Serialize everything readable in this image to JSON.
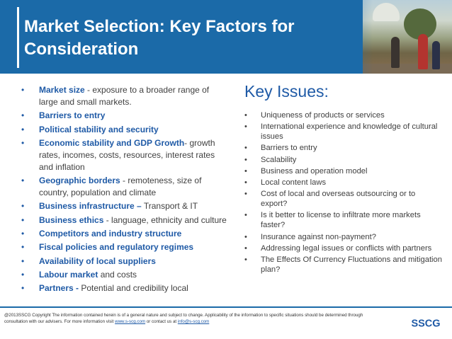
{
  "title": "Market Selection: Key Factors for Consideration",
  "left": {
    "items": [
      {
        "term": "Market size",
        "rest": " - exposure to a broader range of large and small markets."
      },
      {
        "term": "Barriers to entry",
        "rest": ""
      },
      {
        "term": "Political stability  and security",
        "rest": ""
      },
      {
        "term": "Economic stability  and GDP Growth",
        "rest": "- growth rates, incomes, costs, resources, interest rates and inflation"
      },
      {
        "term": "Geographic borders",
        "rest": " - remoteness, size of country, population and climate"
      },
      {
        "term": "Business infrastructure –",
        "rest": " Transport & IT"
      },
      {
        "term": "Business ethics",
        "rest": " - language, ethnicity and culture"
      },
      {
        "term": "Competitors and industry structure",
        "rest": ""
      },
      {
        "term": "Fiscal policies and regulatory regimes",
        "rest": ""
      },
      {
        "term": "Availability of local suppliers",
        "rest": ""
      },
      {
        "term": "Labour  market",
        "rest": " and costs"
      },
      {
        "term": "Partners -",
        "rest": " Potential  and credibility local"
      }
    ]
  },
  "right": {
    "heading": "Key Issues:",
    "items": [
      "Uniqueness of products or services",
      "International experience and knowledge of cultural issues",
      "Barriers to entry",
      "Scalability",
      "Business  and operation model",
      "Local content laws",
      "Cost of local and overseas outsourcing or to export?",
      "Is it better to license to infiltrate more markets faster?",
      "Insurance against non-payment?",
      "Addressing legal issues or conflicts with partners",
      "The Effects Of Currency Fluctuations  and mitigation plan?"
    ]
  },
  "footer": {
    "text_part1": "@2013SSCG Copyright  The information contained herein is of a general nature and subject to change. Applicability of the information to specific situations should be determined through consultation with  our advisers. For more information visit ",
    "link1": "www.s-scg.com",
    "text_part2": " or contact us at ",
    "link2": "info@s-scg.com",
    "logo_text": "SSCG"
  },
  "colors": {
    "header_blue": "#1b6aa8",
    "term_blue": "#1f5aa6",
    "body_gray": "#404040"
  },
  "icons": {
    "left_bullet": "bullet-dot",
    "right_bullet": "bullet-dot"
  }
}
